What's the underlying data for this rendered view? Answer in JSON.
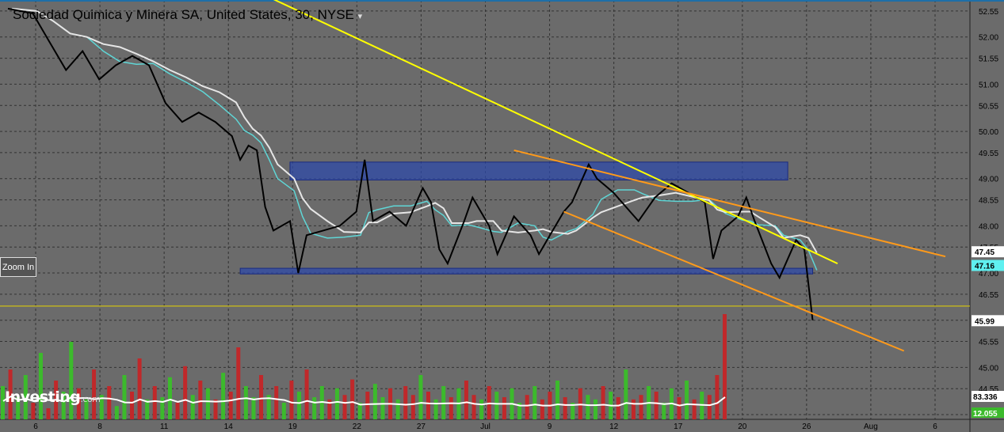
{
  "header": {
    "title": "Sociedad Quimica y Minera SA, United States, 30, NYSE",
    "dropdown_icon": "caret-down-icon"
  },
  "zoom_button": {
    "label": "Zoom In"
  },
  "logo": {
    "text": "Investing",
    "suffix": ".com"
  },
  "colors": {
    "background": "#6b6b6b",
    "grid": "#333333",
    "price": "#000000",
    "ma_fast": "#5fd6d6",
    "ma_slow": "#e6e6e6",
    "resistance_trend": "#ffff00",
    "channel": "#ff9a1a",
    "zone_fill": "#2e4aa8",
    "volume_up": "#3cba2c",
    "volume_down": "#c0282a",
    "volume_ma": "#ffffff"
  },
  "chart_data": {
    "type": "line",
    "title": "Sociedad Quimica y Minera SA, United States, 30, NYSE",
    "x_tick_labels": [
      "6",
      "8",
      "11",
      "14",
      "19",
      "22",
      "27",
      "Jul",
      "9",
      "12",
      "17",
      "20",
      "26",
      "Aug",
      "6"
    ],
    "y_tick_labels": [
      "52.55",
      "52.00",
      "51.55",
      "51.00",
      "50.55",
      "50.00",
      "49.55",
      "49.00",
      "48.55",
      "48.00",
      "47.55",
      "47.00",
      "46.55",
      "46.00",
      "45.55",
      "45.00",
      "44.55",
      "44.00"
    ],
    "ylim": [
      43.9,
      52.75
    ],
    "price_series": {
      "name": "SQM",
      "points": [
        [
          0,
          52.6
        ],
        [
          3,
          52.5
        ],
        [
          5,
          51.9
        ],
        [
          7,
          51.3
        ],
        [
          9,
          51.7
        ],
        [
          11,
          51.1
        ],
        [
          13,
          51.4
        ],
        [
          15,
          51.6
        ],
        [
          17,
          51.4
        ],
        [
          19,
          50.6
        ],
        [
          21,
          50.2
        ],
        [
          23,
          50.4
        ],
        [
          25,
          50.2
        ],
        [
          27,
          49.9
        ],
        [
          28,
          49.4
        ],
        [
          29,
          49.7
        ],
        [
          30,
          49.6
        ],
        [
          31,
          48.4
        ],
        [
          32,
          47.9
        ],
        [
          34,
          48.1
        ],
        [
          35,
          47.0
        ],
        [
          36,
          47.8
        ],
        [
          38,
          47.9
        ],
        [
          40,
          48.0
        ],
        [
          42,
          48.3
        ],
        [
          43,
          49.4
        ],
        [
          44,
          48.1
        ],
        [
          46,
          48.3
        ],
        [
          48,
          48.0
        ],
        [
          50,
          48.8
        ],
        [
          51,
          48.5
        ],
        [
          52,
          47.5
        ],
        [
          53,
          47.2
        ],
        [
          55,
          48.1
        ],
        [
          56,
          48.6
        ],
        [
          58,
          48.0
        ],
        [
          59,
          47.4
        ],
        [
          61,
          48.2
        ],
        [
          63,
          47.8
        ],
        [
          64,
          47.4
        ],
        [
          65,
          47.7
        ],
        [
          67,
          48.3
        ],
        [
          68,
          48.5
        ],
        [
          70,
          49.3
        ],
        [
          71,
          49.0
        ],
        [
          73,
          48.7
        ],
        [
          75,
          48.3
        ],
        [
          76,
          48.1
        ],
        [
          78,
          48.6
        ],
        [
          80,
          48.9
        ],
        [
          82,
          48.7
        ],
        [
          84,
          48.5
        ],
        [
          85,
          47.3
        ],
        [
          86,
          47.9
        ],
        [
          88,
          48.2
        ],
        [
          89,
          48.6
        ],
        [
          90,
          48.1
        ],
        [
          92,
          47.2
        ],
        [
          93,
          46.9
        ],
        [
          95,
          47.7
        ],
        [
          96,
          47.5
        ],
        [
          97,
          46.0
        ]
      ]
    },
    "current_price": "47.16",
    "last_price": "45.99",
    "reference_level": "47.45",
    "horizontal_line": 46.3,
    "zones": [
      {
        "name": "resistance-zone",
        "y_low": 48.97,
        "y_high": 49.35,
        "x_start": 34,
        "x_end": 94
      },
      {
        "name": "support-zone",
        "y_low": 46.98,
        "y_high": 47.1,
        "x_start": 28,
        "x_end": 97
      }
    ],
    "trendlines": [
      {
        "name": "yellow-downtrend",
        "x1": 32,
        "y1": 52.8,
        "x2": 100,
        "y2": 47.2
      },
      {
        "name": "orange-channel-top",
        "x1": 61,
        "y1": 49.6,
        "x2": 113,
        "y2": 47.35
      },
      {
        "name": "orange-channel-bottom",
        "x1": 67,
        "y1": 48.3,
        "x2": 108,
        "y2": 45.35
      }
    ],
    "volume": {
      "tick_labels": [
        "83.336",
        "12.055"
      ],
      "values": [
        30,
        45,
        20,
        40,
        15,
        60,
        10,
        35,
        25,
        70,
        28,
        18,
        45,
        22,
        30,
        12,
        40,
        25,
        55,
        18,
        30,
        20,
        38,
        15,
        48,
        22,
        35,
        28,
        18,
        42,
        25,
        65,
        30,
        20,
        40,
        22,
        30,
        15,
        35,
        25,
        45,
        20,
        30,
        18,
        28,
        22,
        36,
        15,
        25,
        32,
        20,
        28,
        18,
        30,
        22,
        40,
        25,
        18,
        30,
        20,
        28,
        35,
        22,
        18,
        30,
        25,
        20,
        28,
        15,
        22,
        30,
        18,
        25,
        35,
        20,
        15,
        28,
        22,
        18,
        30,
        25,
        20,
        45,
        18,
        22,
        30,
        25,
        15,
        28,
        20,
        35,
        18,
        25,
        22,
        40,
        95
      ],
      "up": [
        1,
        0,
        1,
        1,
        0,
        1,
        0,
        0,
        1,
        1,
        0,
        1,
        0,
        1,
        0,
        1,
        1,
        0,
        0,
        1,
        0,
        1,
        1,
        0,
        0,
        1,
        0,
        1,
        0,
        1,
        0,
        0,
        1,
        1,
        0,
        1,
        0,
        1,
        0,
        1,
        0,
        1,
        1,
        0,
        1,
        0,
        0,
        1,
        0,
        1,
        1,
        0,
        1,
        0,
        0,
        1,
        0,
        1,
        1,
        0,
        1,
        0,
        0,
        1,
        0,
        1,
        0,
        1,
        1,
        0,
        1,
        0,
        0,
        1,
        0,
        1,
        0,
        1,
        1,
        0,
        1,
        0,
        1,
        0,
        0,
        1,
        0,
        1,
        1,
        0,
        1,
        0,
        1,
        0,
        0,
        0
      ]
    }
  }
}
